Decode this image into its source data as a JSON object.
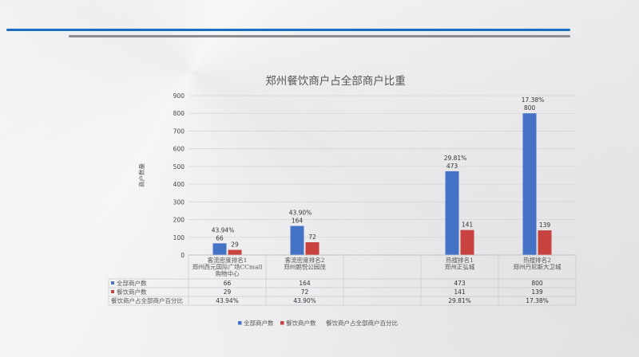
{
  "chart_data": {
    "type": "bar",
    "title": "郑州餐饮商户占全部商户比重",
    "ylabel": "商户数量",
    "ylim": [
      0,
      900
    ],
    "yticks": [
      0,
      100,
      200,
      300,
      400,
      500,
      600,
      700,
      800,
      900
    ],
    "categories": [
      {
        "line1": "客流密度排名1",
        "line2": "郑州西元国际广场CCmall",
        "line3": "购物中心"
      },
      {
        "line1": "客流密度排名2",
        "line2": "郑州朗悦公园茂",
        "line3": ""
      },
      {
        "line1": "",
        "line2": "",
        "line3": ""
      },
      {
        "line1": "热搜排名1",
        "line2": "郑州正弘城",
        "line3": ""
      },
      {
        "line1": "热搜排名2",
        "line2": "郑州丹尼斯大卫城",
        "line3": ""
      }
    ],
    "series": [
      {
        "name": "全部商户数",
        "color": "#4473c5",
        "values": [
          66,
          164,
          null,
          473,
          800
        ],
        "labels": [
          "66",
          "164",
          "",
          "473",
          "800"
        ]
      },
      {
        "name": "餐饮商户数",
        "color": "#c8423f",
        "values": [
          29,
          72,
          null,
          141,
          139
        ],
        "labels": [
          "29",
          "72",
          "",
          "141",
          "139"
        ]
      }
    ],
    "percent_series": {
      "name": "餐饮商户占全部商户百分比",
      "labels": [
        "43.94%",
        "43.90%",
        "",
        "29.81%",
        "17.38%"
      ]
    },
    "table_rows": [
      {
        "name": "全部商户数",
        "values": [
          "66",
          "164",
          "",
          "473",
          "800"
        ]
      },
      {
        "name": "餐饮商户数",
        "values": [
          "29",
          "72",
          "",
          "141",
          "139"
        ]
      },
      {
        "name": "餐饮商户占全部商户百分比",
        "values": [
          "43.94%",
          "43.90%",
          "",
          "29.81%",
          "17.38%"
        ]
      }
    ],
    "legend": [
      {
        "name": "全部商户数",
        "marker": "square",
        "color": "#4473c5"
      },
      {
        "name": "餐饮商户数",
        "marker": "square",
        "color": "#c8423f"
      },
      {
        "name": "餐饮商户占全部商户百分比",
        "marker": "none",
        "color": ""
      }
    ],
    "legend_position": "bottom",
    "grid": true
  }
}
